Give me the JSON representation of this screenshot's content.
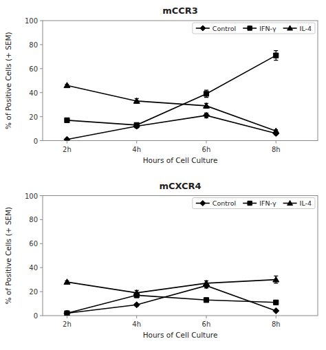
{
  "chart_data": [
    {
      "type": "line",
      "title": "mCCR3",
      "x": [
        2,
        4,
        6,
        8
      ],
      "xlim": [
        1.3,
        9.2
      ],
      "xticks": [
        {
          "value": 2,
          "label": "2h"
        },
        {
          "value": 4,
          "label": "4h"
        },
        {
          "value": 6,
          "label": "6h"
        },
        {
          "value": 8,
          "label": "8h"
        }
      ],
      "ylim": [
        0,
        100
      ],
      "yticks": [
        0,
        20,
        40,
        60,
        80,
        100
      ],
      "xlabel": "Hours of Cell Culture",
      "ylabel": "% of Positive Cells (+ SEM)",
      "grid": false,
      "legend": "upper right",
      "series": [
        {
          "name": "Control",
          "color": "#000000",
          "marker": "diamond",
          "values": [
            1,
            12,
            21,
            6
          ],
          "errors": [
            0.5,
            1.5,
            2,
            1
          ]
        },
        {
          "name": "IFN-γ",
          "color": "#000000",
          "marker": "square",
          "values": [
            17,
            13,
            39,
            71
          ],
          "errors": [
            1,
            1.5,
            3,
            4
          ]
        },
        {
          "name": "IL-4",
          "color": "#000000",
          "marker": "triangle",
          "values": [
            46,
            33,
            29,
            8
          ],
          "errors": [
            1,
            2,
            2,
            1
          ]
        }
      ]
    },
    {
      "type": "line",
      "title": "mCXCR4",
      "x": [
        2,
        4,
        6,
        8
      ],
      "xlim": [
        1.3,
        9.2
      ],
      "xticks": [
        {
          "value": 2,
          "label": "2h"
        },
        {
          "value": 4,
          "label": "4h"
        },
        {
          "value": 6,
          "label": "6h"
        },
        {
          "value": 8,
          "label": "8h"
        }
      ],
      "ylim": [
        0,
        100
      ],
      "yticks": [
        0,
        20,
        40,
        60,
        80,
        100
      ],
      "xlabel": "Hours of Cell Culture",
      "ylabel": "% of Positive Cells (+ SEM)",
      "grid": false,
      "legend": "upper right",
      "series": [
        {
          "name": "Control",
          "color": "#000000",
          "marker": "diamond",
          "values": [
            2,
            9,
            25,
            4
          ],
          "errors": [
            0.5,
            1,
            2,
            0.5
          ]
        },
        {
          "name": "IFN-γ",
          "color": "#000000",
          "marker": "square",
          "values": [
            2,
            17,
            13,
            11
          ],
          "errors": [
            0.5,
            2,
            1.5,
            1
          ]
        },
        {
          "name": "IL-4",
          "color": "#000000",
          "marker": "triangle",
          "values": [
            28,
            19,
            27,
            30
          ],
          "errors": [
            1,
            2,
            2,
            3
          ]
        }
      ]
    }
  ]
}
